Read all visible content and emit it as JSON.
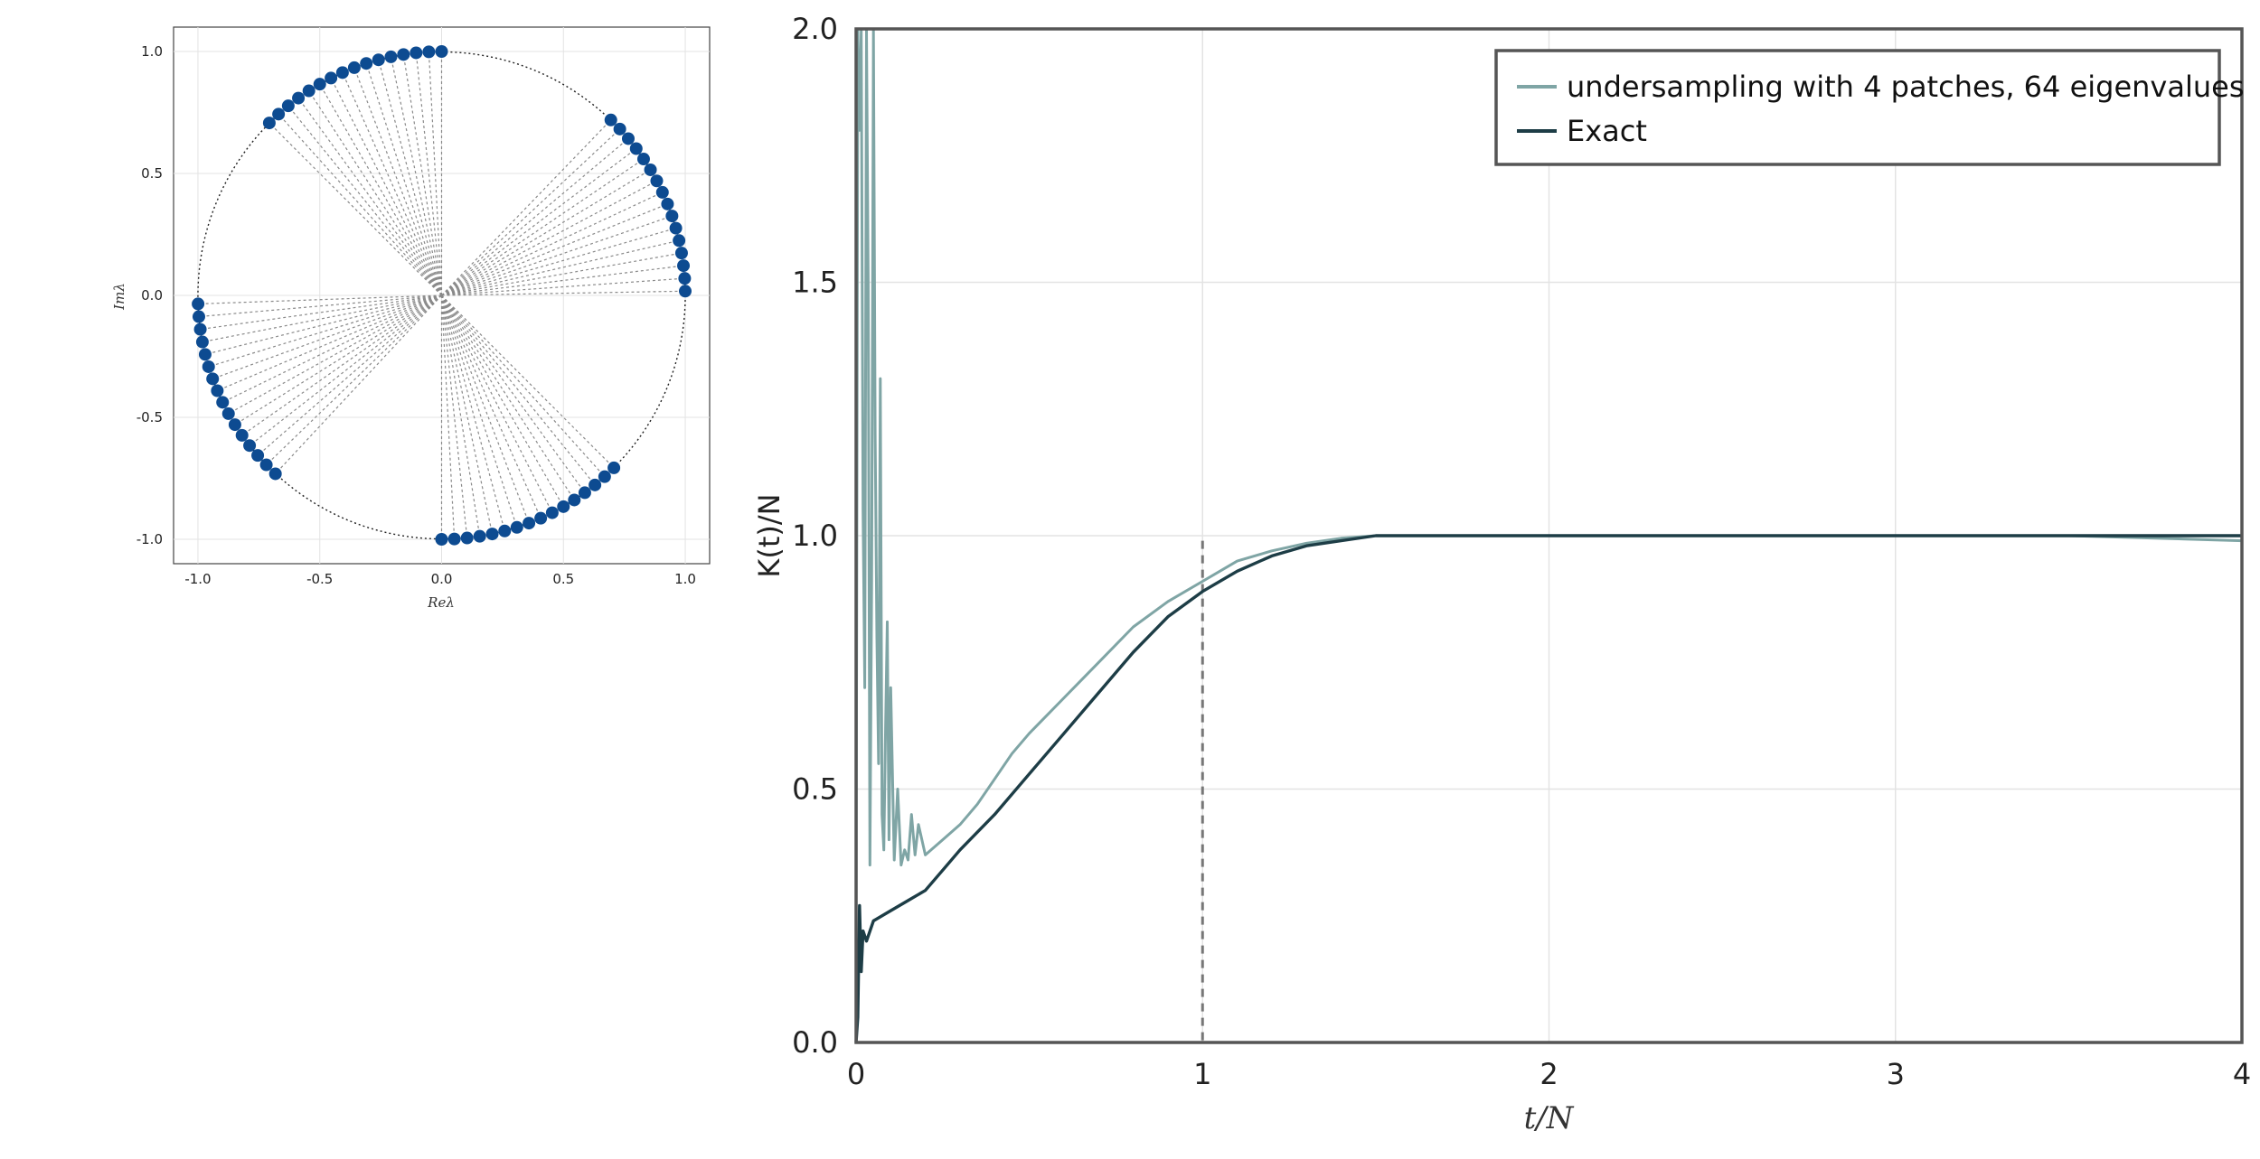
{
  "colors": {
    "eigen_points": "#0d4b91",
    "circle": "#222222",
    "spokes": "#8a8a8a",
    "undersampling": "#7fa5a5",
    "exact": "#1d3d46",
    "grid": "#e3e3e3",
    "frame": "#555555",
    "marker_line": "#777777"
  },
  "chart_data": [
    {
      "type": "scatter",
      "xlabel": "Reλ",
      "ylabel": "Imλ",
      "xlim": [
        -1.1,
        1.1
      ],
      "ylim": [
        -1.1,
        1.1
      ],
      "xticks": [
        "-1.0",
        "-0.5",
        "0.0",
        "0.5",
        "1.0"
      ],
      "yticks": [
        "1.0",
        "0.5",
        "0.0",
        "-0.5",
        "-1.0"
      ],
      "grid": true,
      "reference_circle": {
        "radius": 1.0,
        "style": "dotted"
      },
      "spokes_from_origin": true,
      "point_count": 64,
      "patches_deg": [
        {
          "start": 90.0,
          "end": 135.0,
          "count": 16
        },
        {
          "start": 1.0,
          "end": 46.0,
          "count": 16
        },
        {
          "start": 182.0,
          "end": 227.0,
          "count": 16
        },
        {
          "start": 270.0,
          "end": 315.0,
          "count": 16
        }
      ]
    },
    {
      "type": "line",
      "xlabel": "t/N",
      "ylabel": "K(t)/N",
      "xlim": [
        0,
        4
      ],
      "ylim": [
        0,
        2
      ],
      "xticks": [
        "0",
        "1",
        "2",
        "3",
        "4"
      ],
      "yticks": [
        "0.0",
        "0.5",
        "1.0",
        "1.5",
        "2.0"
      ],
      "grid": true,
      "legend": {
        "placement": "top-right"
      },
      "vertical_marker": {
        "x": 1.0,
        "y_top": 0.99,
        "style": "dashed"
      },
      "series": [
        {
          "name": "undersampling with 4 patches, 64 eigenvalues",
          "x": [
            0,
            0.005,
            0.01,
            0.015,
            0.02,
            0.025,
            0.03,
            0.035,
            0.04,
            0.045,
            0.05,
            0.055,
            0.06,
            0.065,
            0.07,
            0.075,
            0.08,
            0.085,
            0.09,
            0.095,
            0.1,
            0.11,
            0.12,
            0.13,
            0.14,
            0.15,
            0.16,
            0.17,
            0.18,
            0.2,
            0.25,
            0.3,
            0.35,
            0.4,
            0.45,
            0.5,
            0.6,
            0.7,
            0.8,
            0.9,
            1.0,
            1.1,
            1.2,
            1.3,
            1.4,
            1.5,
            1.75,
            2.0,
            2.5,
            3.0,
            3.5,
            4.0
          ],
          "y": [
            0.2,
            2.0,
            1.8,
            2.0,
            1.05,
            0.7,
            2.0,
            1.5,
            0.35,
            0.9,
            2.0,
            1.2,
            0.8,
            0.55,
            1.31,
            0.45,
            0.38,
            0.62,
            0.83,
            0.4,
            0.7,
            0.36,
            0.5,
            0.35,
            0.38,
            0.36,
            0.45,
            0.37,
            0.43,
            0.37,
            0.4,
            0.43,
            0.47,
            0.52,
            0.57,
            0.61,
            0.68,
            0.75,
            0.82,
            0.87,
            0.91,
            0.95,
            0.97,
            0.985,
            0.995,
            1.0,
            1.0,
            1.0,
            1.0,
            1.0,
            1.0,
            0.99
          ]
        },
        {
          "name": "Exact",
          "x": [
            0,
            0.005,
            0.01,
            0.015,
            0.02,
            0.03,
            0.05,
            0.1,
            0.15,
            0.2,
            0.25,
            0.3,
            0.4,
            0.5,
            0.6,
            0.7,
            0.8,
            0.9,
            1.0,
            1.1,
            1.2,
            1.3,
            1.4,
            1.5,
            1.75,
            2.0,
            2.5,
            3.0,
            3.5,
            4.0
          ],
          "y": [
            0.0,
            0.05,
            0.27,
            0.14,
            0.22,
            0.2,
            0.24,
            0.26,
            0.28,
            0.3,
            0.34,
            0.38,
            0.45,
            0.53,
            0.61,
            0.69,
            0.77,
            0.84,
            0.89,
            0.93,
            0.96,
            0.98,
            0.99,
            1.0,
            1.0,
            1.0,
            1.0,
            1.0,
            1.0,
            1.0
          ]
        }
      ]
    }
  ]
}
